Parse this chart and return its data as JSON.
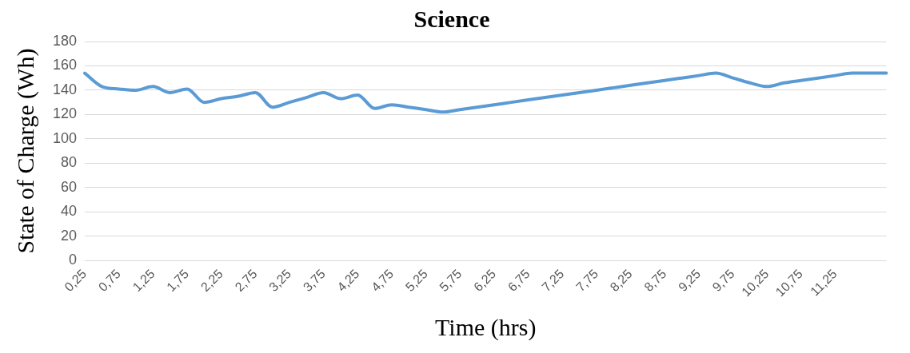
{
  "chart_data": {
    "type": "line",
    "title": "Science",
    "xlabel": "Time (hrs)",
    "ylabel": "State of Charge (Wh)",
    "categories": [
      "0,25",
      null,
      "0,75",
      null,
      "1,25",
      null,
      "1,75",
      null,
      "2,25",
      null,
      "2,75",
      null,
      "3,25",
      null,
      "3,75",
      null,
      "4,25",
      null,
      "4,75",
      null,
      "5,25",
      null,
      "5,75",
      null,
      "6,25",
      null,
      "6,75",
      null,
      "7,25",
      null,
      "7,75",
      null,
      "8,25",
      null,
      "8,75",
      null,
      "9,25",
      null,
      "9,75",
      null,
      "10,25",
      null,
      "10,75",
      null,
      "11,25",
      null,
      null,
      null
    ],
    "series": [
      {
        "color": "#5b9bd5",
        "values": [
          154,
          143,
          141,
          140,
          143,
          138,
          141,
          130,
          133,
          135,
          138,
          126,
          130,
          134,
          138,
          133,
          136,
          125,
          128,
          126,
          124,
          122,
          124,
          126,
          128,
          130,
          132,
          134,
          136,
          138,
          140,
          142,
          144,
          146,
          148,
          150,
          152,
          154,
          150,
          146,
          143,
          146,
          148,
          150,
          152,
          154,
          154,
          154
        ]
      }
    ],
    "ylim": [
      0,
      180
    ],
    "yticks": [
      0,
      20,
      40,
      60,
      80,
      100,
      120,
      140,
      160,
      180
    ],
    "grid": "y",
    "legend": false,
    "marker": "none",
    "line_style": "solid"
  }
}
